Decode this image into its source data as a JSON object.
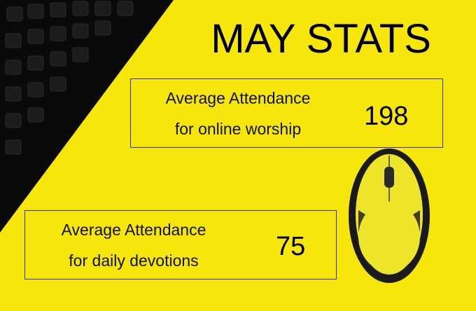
{
  "title": "MAY STATS",
  "stats": [
    {
      "label_lines": [
        "Average Attendance",
        "for online worship"
      ],
      "value": 198
    },
    {
      "label_lines": [
        "Average Attendance",
        "for daily devotions"
      ],
      "value": 75
    }
  ]
}
